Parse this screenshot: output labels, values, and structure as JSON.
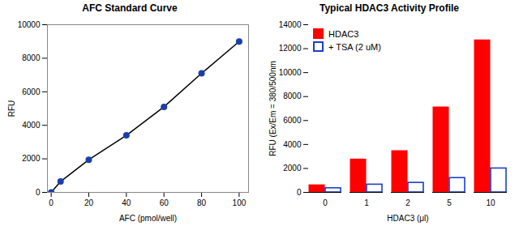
{
  "chart_data": [
    {
      "type": "line",
      "title": "AFC Standard Curve",
      "xlabel": "AFC (pmol/well)",
      "ylabel": "RFU",
      "x": [
        0,
        5,
        20,
        40,
        60,
        80,
        100
      ],
      "series": [
        {
          "type": "line",
          "color": "#000000",
          "values": [
            0,
            650,
            1950,
            3400,
            5100,
            7100,
            9000
          ]
        },
        {
          "type": "scatter",
          "color": "#1a3eaa",
          "marker": "circle",
          "values": [
            0,
            650,
            1950,
            3400,
            5100,
            7100,
            9000
          ]
        }
      ],
      "xlim": [
        -2,
        105
      ],
      "ylim": [
        0,
        10000
      ],
      "xticks": [
        0,
        20,
        40,
        60,
        80,
        100
      ],
      "yticks": [
        0,
        2000,
        4000,
        6000,
        8000,
        10000
      ]
    },
    {
      "type": "bar",
      "title": "Typical HDAC3 Activity Profile",
      "xlabel": "HDAC3 (μl)",
      "ylabel": "RFU (Ex/Em = 380/500nm",
      "categories": [
        "0",
        "1",
        "2",
        "5",
        "10"
      ],
      "series": [
        {
          "name": "HDAC3",
          "color": "#ff0000",
          "values": [
            600,
            2750,
            3450,
            7100,
            12700
          ]
        },
        {
          "name": "+ TSA (2 uM)",
          "color": "#1a3ecc",
          "values": [
            350,
            650,
            800,
            1200,
            2000
          ]
        }
      ],
      "ylim": [
        0,
        14000
      ],
      "yticks": [
        0,
        2000,
        4000,
        6000,
        8000,
        10000,
        12000,
        14000
      ],
      "legend": "upper left"
    }
  ]
}
